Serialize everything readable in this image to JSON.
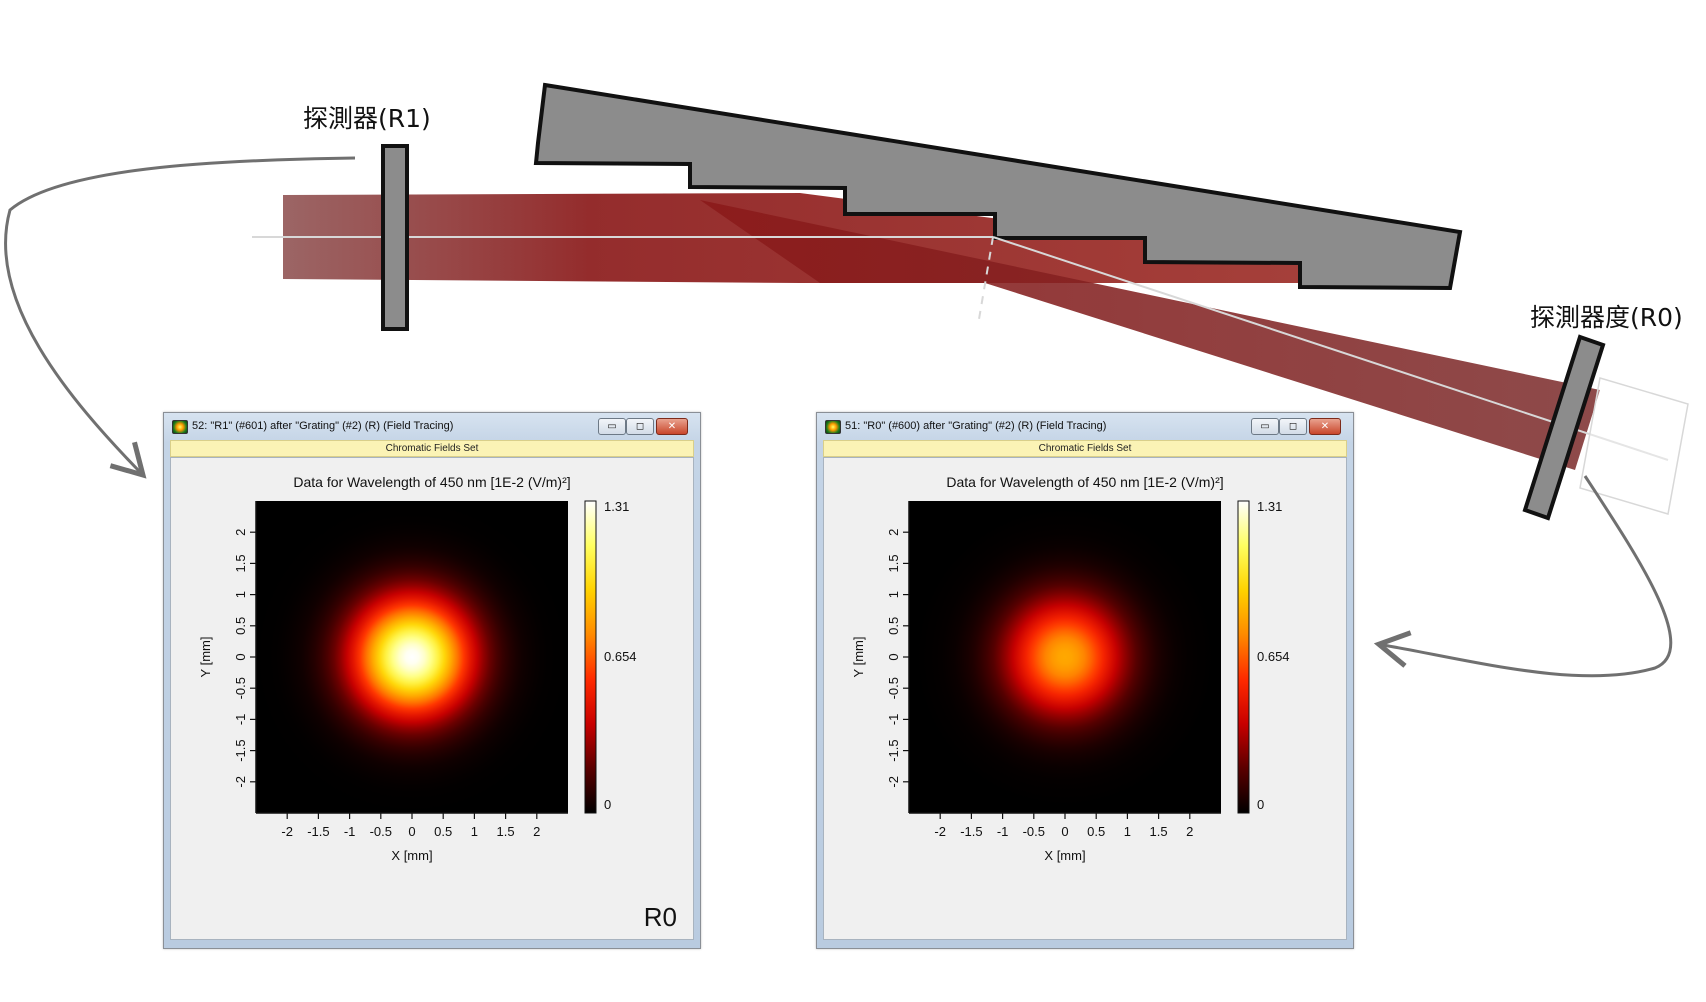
{
  "detectors": {
    "r1_label": "探測器(R1)",
    "r0_label": "探測器度(R0)"
  },
  "windows": [
    {
      "title": "52: \"R1\" (#601) after \"Grating\" (#2) (R) (Field Tracing)",
      "subheader": "Chromatic Fields Set",
      "plot_title": "Data for Wavelength of 450 nm  [1E-2 (V/m)²]",
      "corner_label": "R0",
      "peak_fraction": 1.0
    },
    {
      "title": "51: \"R0\" (#600) after \"Grating\" (#2) (R) (Field Tracing)",
      "subheader": "Chromatic Fields Set",
      "plot_title": "Data for Wavelength of 450 nm  [1E-2 (V/m)²]",
      "corner_label": "",
      "peak_fraction": 0.63
    }
  ],
  "window_buttons": {
    "minimize": "▭",
    "maximize": "◻",
    "close": "✕"
  },
  "chart_data": {
    "type": "heatmap",
    "xlabel": "X [mm]",
    "ylabel": "Y [mm]",
    "xlim": [
      -2.5,
      2.5
    ],
    "ylim": [
      -2.5,
      2.5
    ],
    "x_ticks": [
      "-2",
      "-1.5",
      "-1",
      "-0.5",
      "0",
      "0.5",
      "1",
      "1.5",
      "2"
    ],
    "y_ticks": [
      "-2",
      "-1.5",
      "-1",
      "-0.5",
      "0",
      "0.5",
      "1",
      "1.5",
      "2"
    ],
    "colorbar_ticks": [
      "1.31",
      "0.654",
      "0"
    ],
    "colorbar_range": [
      0,
      1.31
    ],
    "colormap": [
      "#000000",
      "#5a0000",
      "#c80000",
      "#ff2a00",
      "#ff8a00",
      "#ffd200",
      "#ffff60",
      "#ffffff"
    ]
  },
  "colors": {
    "prism_fill": "#8c8c8c",
    "beam": "#8b1a1a",
    "arrow": "#707070"
  }
}
